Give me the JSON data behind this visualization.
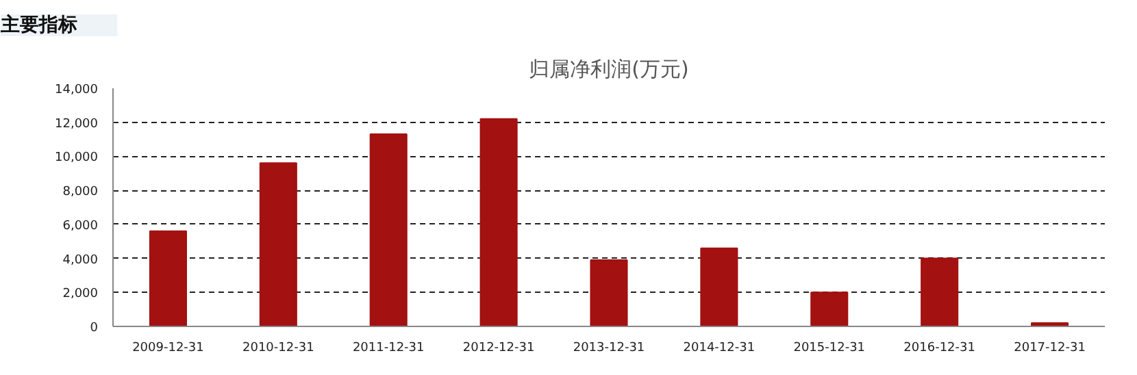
{
  "chart_data": {
    "type": "bar",
    "title": "归属净利润(万元)",
    "annotations": [
      "主要指标"
    ],
    "categories": [
      "2009-12-31",
      "2010-12-31",
      "2011-12-31",
      "2012-12-31",
      "2013-12-31",
      "2014-12-31",
      "2015-12-31",
      "2016-12-31",
      "2017-12-31"
    ],
    "values": [
      5600,
      9600,
      11300,
      12200,
      3900,
      4600,
      2000,
      4000,
      200
    ],
    "color": "#a31111",
    "ylim": [
      0,
      14000
    ],
    "yticks": [
      0,
      {
        "value": 2000,
        "label": "2,000"
      },
      {
        "value": 4000,
        "label": "4,000"
      },
      {
        "value": 6000,
        "label": "6,000"
      },
      {
        "value": 8000,
        "label": "8,000"
      },
      {
        "value": 10000,
        "label": "10,000"
      },
      {
        "value": 12000,
        "label": "12,000"
      },
      {
        "value": 14000,
        "label": "14,000"
      }
    ],
    "grid": "y"
  }
}
